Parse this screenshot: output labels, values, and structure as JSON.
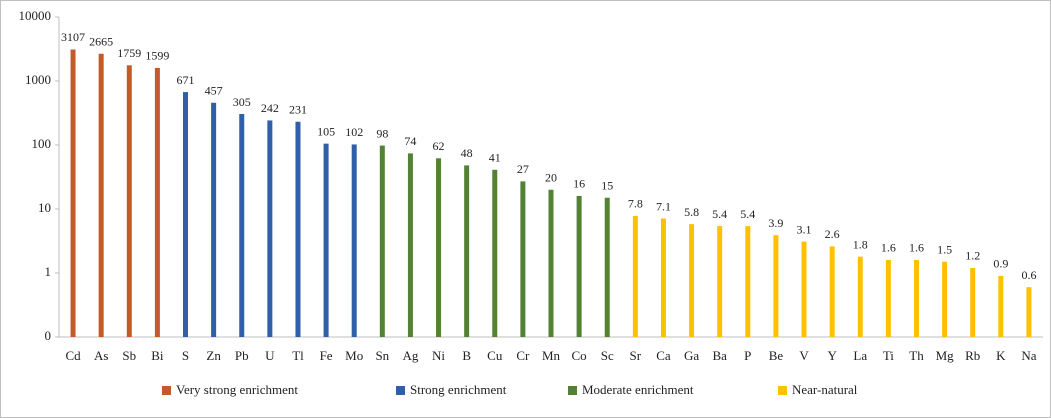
{
  "chart_data": {
    "type": "bar",
    "log_scale": true,
    "grid": false,
    "legend": "bottom",
    "categories": [
      "Cd",
      "As",
      "Sb",
      "Bi",
      "S",
      "Zn",
      "Pb",
      "U",
      "Tl",
      "Fe",
      "Mo",
      "Sn",
      "Ag",
      "Ni",
      "B",
      "Cu",
      "Cr",
      "Mn",
      "Co",
      "Sc",
      "Sr",
      "Ca",
      "Ga",
      "Ba",
      "P",
      "Be",
      "V",
      "Y",
      "La",
      "Ti",
      "Th",
      "Mg",
      "Rb",
      "K",
      "Na"
    ],
    "ylim": [
      0.1,
      10000
    ],
    "yticks": [
      {
        "value": 0.1,
        "label": "0"
      },
      1,
      10,
      100,
      1000,
      10000
    ],
    "series": [
      {
        "name": "Very strong enrichment",
        "color": "#c55a28",
        "values": [
          3107,
          2665,
          1759,
          1599,
          null,
          null,
          null,
          null,
          null,
          null,
          null,
          null,
          null,
          null,
          null,
          null,
          null,
          null,
          null,
          null,
          null,
          null,
          null,
          null,
          null,
          null,
          null,
          null,
          null,
          null,
          null,
          null,
          null,
          null,
          null
        ]
      },
      {
        "name": "Strong enrichment",
        "color": "#2e5fa8",
        "values": [
          null,
          null,
          null,
          null,
          671,
          457,
          305,
          242,
          231,
          105,
          102,
          null,
          null,
          null,
          null,
          null,
          null,
          null,
          null,
          null,
          null,
          null,
          null,
          null,
          null,
          null,
          null,
          null,
          null,
          null,
          null,
          null,
          null,
          null,
          null
        ]
      },
      {
        "name": "Moderate enrichment",
        "color": "#548235",
        "values": [
          null,
          null,
          null,
          null,
          null,
          null,
          null,
          null,
          null,
          null,
          null,
          98,
          74,
          62,
          48,
          41,
          27,
          20,
          16,
          15,
          null,
          null,
          null,
          null,
          null,
          null,
          null,
          null,
          null,
          null,
          null,
          null,
          null,
          null,
          null
        ]
      },
      {
        "name": "Near-natural",
        "color": "#ffc000",
        "values": [
          null,
          null,
          null,
          null,
          null,
          null,
          null,
          null,
          null,
          null,
          null,
          null,
          null,
          null,
          null,
          null,
          null,
          null,
          null,
          null,
          7.8,
          7.1,
          5.8,
          5.4,
          5.4,
          3.9,
          3.1,
          2.6,
          1.8,
          1.6,
          1.6,
          1.5,
          1.2,
          0.9,
          0.6
        ]
      }
    ]
  }
}
